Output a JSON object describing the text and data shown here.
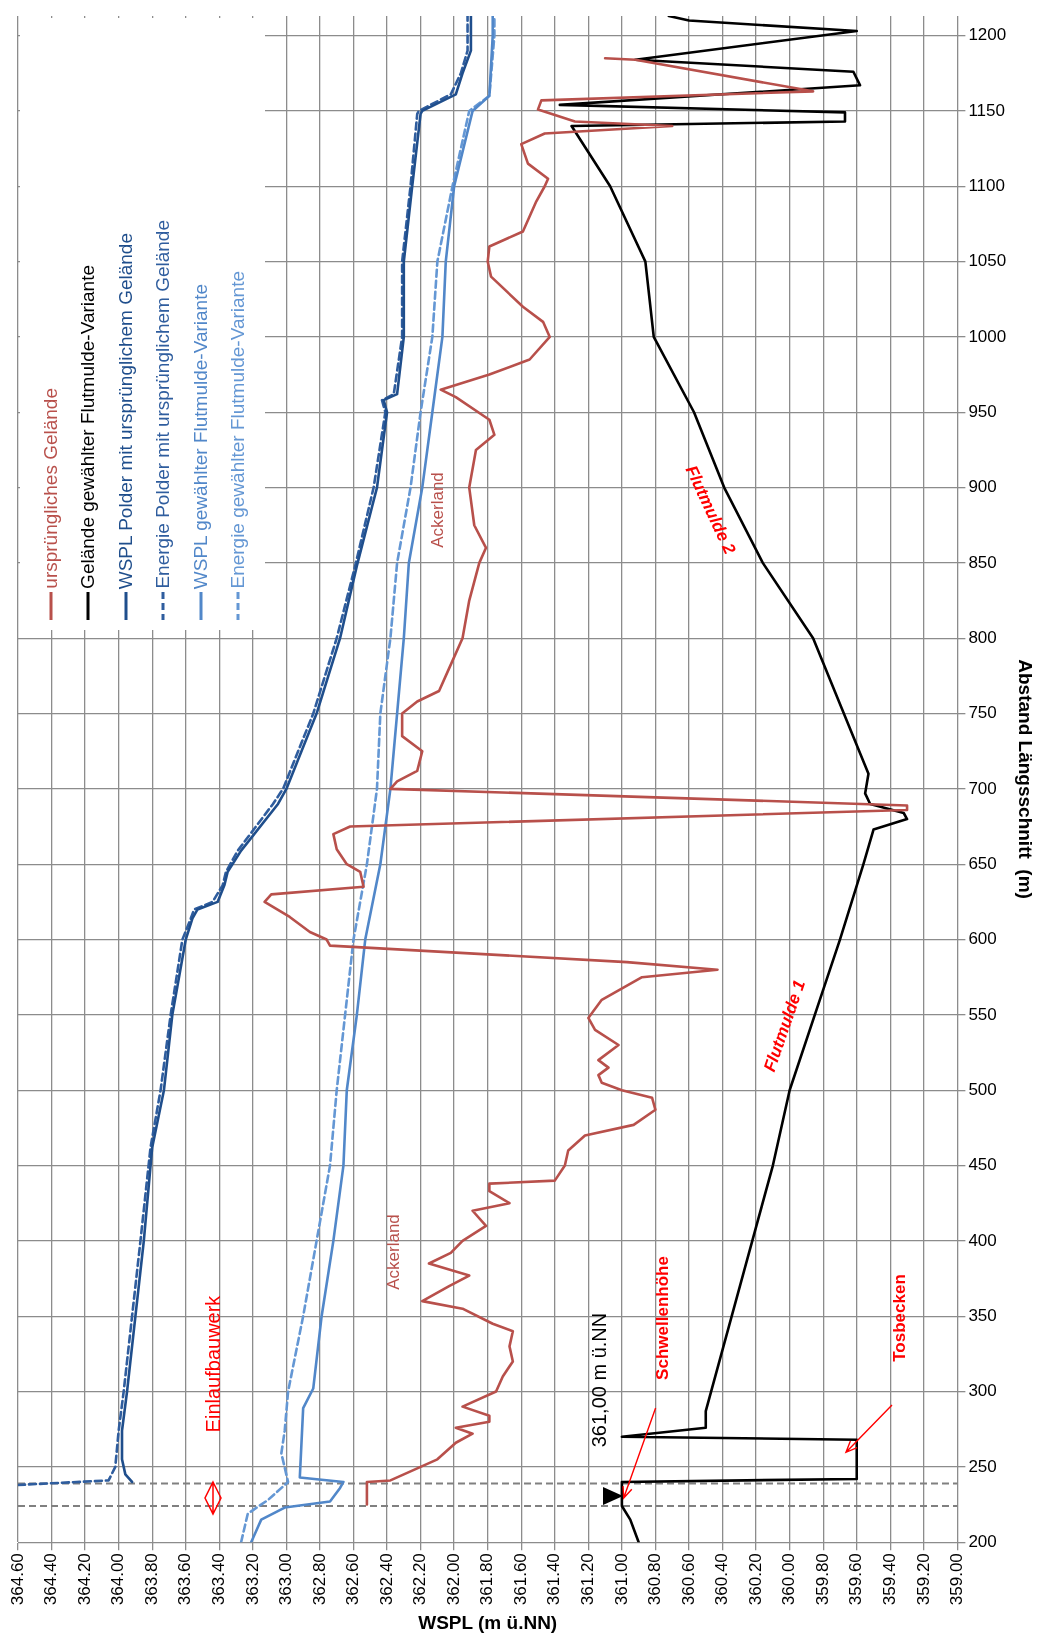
{
  "chart_data": {
    "type": "line",
    "xlabel": "WSPL (m ü.NN)",
    "ylabel": "Abstand Längsschnitt  (m)",
    "xlim": [
      364.6,
      359
    ],
    "xticks": [
      {
        "value": 364.6,
        "label": "364.60"
      },
      {
        "value": 364.4,
        "label": "364.40"
      },
      {
        "value": 364.2,
        "label": "364.20"
      },
      {
        "value": 364,
        "label": "364.00"
      },
      {
        "value": 363.8,
        "label": "363.80"
      },
      {
        "value": 363.6,
        "label": "363.60"
      },
      {
        "value": 363.4,
        "label": "363.40"
      },
      {
        "value": 363.2,
        "label": "363.20"
      },
      {
        "value": 363,
        "label": "363.00"
      },
      {
        "value": 362.8,
        "label": "362.80"
      },
      {
        "value": 362.6,
        "label": "362.60"
      },
      {
        "value": 362.4,
        "label": "362.40"
      },
      {
        "value": 362.2,
        "label": "362.20"
      },
      {
        "value": 362,
        "label": "362.00"
      },
      {
        "value": 361.8,
        "label": "361.80"
      },
      {
        "value": 361.6,
        "label": "361.60"
      },
      {
        "value": 361.4,
        "label": "361.40"
      },
      {
        "value": 361.2,
        "label": "361.20"
      },
      {
        "value": 361,
        "label": "361.00"
      },
      {
        "value": 360.8,
        "label": "360.80"
      },
      {
        "value": 360.6,
        "label": "360.60"
      },
      {
        "value": 360.4,
        "label": "360.40"
      },
      {
        "value": 360.2,
        "label": "360.20"
      },
      {
        "value": 360,
        "label": "360.00"
      },
      {
        "value": 359.8,
        "label": "359.80"
      },
      {
        "value": 359.6,
        "label": "359.60"
      },
      {
        "value": 359.4,
        "label": "359.40"
      },
      {
        "value": 359.2,
        "label": "359.20"
      },
      {
        "value": 359,
        "label": "359.00"
      }
    ],
    "ylim": [
      200,
      1213
    ],
    "yticks": [
      200,
      250,
      300,
      350,
      400,
      450,
      500,
      550,
      600,
      650,
      700,
      750,
      800,
      850,
      900,
      950,
      1000,
      1050,
      1100,
      1150,
      1200
    ],
    "grid": true,
    "legend": "top left",
    "marker": "none",
    "series": [
      {
        "name": "ursprüngliches Gelände",
        "color": "#b8504b",
        "line_style": "solid",
        "values": [
          225,
          240,
          241,
          255,
          266,
          272,
          276,
          280,
          284,
          290,
          300,
          310,
          320,
          330,
          340,
          345,
          355,
          360,
          370,
          377,
          385,
          392,
          400,
          410,
          420,
          425,
          433,
          438,
          440,
          450,
          460,
          470,
          477,
          487,
          495,
          500,
          505,
          510,
          515,
          520,
          530,
          540,
          548,
          560,
          575,
          580,
          585,
          596,
          600,
          605,
          615,
          625,
          630,
          635,
          645,
          650,
          660,
          670,
          675,
          686,
          689,
          700,
          705,
          712,
          725,
          735,
          750,
          758,
          765,
          780,
          800,
          825,
          850,
          860,
          875,
          900,
          925,
          935,
          945,
          960,
          965,
          975,
          985,
          1000,
          1010,
          1020,
          1040,
          1050,
          1060,
          1070,
          1090,
          1100,
          1105,
          1115,
          1128,
          1135,
          1140,
          1143,
          1151,
          1157,
          1163,
          1184,
          1185
        ],
        "x": [
          362.52,
          362.52,
          362.38,
          362.1,
          361.99,
          361.89,
          361.99,
          361.79,
          361.79,
          361.95,
          361.75,
          361.71,
          361.65,
          361.67,
          361.65,
          361.77,
          361.95,
          362.19,
          362.03,
          361.91,
          362.15,
          362.02,
          361.95,
          361.81,
          361.89,
          361.67,
          361.79,
          361.79,
          361.4,
          361.34,
          361.32,
          361.22,
          360.93,
          360.8,
          360.82,
          361.0,
          361.12,
          361.14,
          361.08,
          361.14,
          361.02,
          361.16,
          361.2,
          361.12,
          360.88,
          360.43,
          360.97,
          362.74,
          362.76,
          362.86,
          362.98,
          363.13,
          363.09,
          362.54,
          362.56,
          362.64,
          362.7,
          362.72,
          362.62,
          359.3,
          359.3,
          362.38,
          362.34,
          362.22,
          362.19,
          362.31,
          362.31,
          362.22,
          362.09,
          362.03,
          361.95,
          361.91,
          361.85,
          361.81,
          361.88,
          361.91,
          361.87,
          361.76,
          361.79,
          361.99,
          362.08,
          361.79,
          361.55,
          361.43,
          361.47,
          361.59,
          361.78,
          361.8,
          361.79,
          361.59,
          361.51,
          361.46,
          361.44,
          361.56,
          361.6,
          361.46,
          360.7,
          361.28,
          361.5,
          361.48,
          359.86,
          360.92,
          361.1
        ]
      },
      {
        "name": "Gelände gewählter Flutmulde-Variante",
        "color": "#000000",
        "line_style": "solid",
        "values": [
          200,
          215,
          224,
          240,
          242,
          268,
          270,
          276,
          287,
          450,
          500,
          600,
          650,
          673,
          680,
          684,
          690,
          697,
          710,
          800,
          850,
          900,
          950,
          1000,
          1050,
          1100,
          1140,
          1143,
          1149,
          1154,
          1167,
          1176,
          1184,
          1203,
          1210,
          1213
        ],
        "x": [
          360.9,
          360.95,
          361.0,
          361.0,
          359.6,
          359.6,
          361.0,
          360.5,
          360.5,
          360.1,
          360.0,
          359.7,
          359.56,
          359.5,
          359.3,
          359.32,
          359.52,
          359.55,
          359.53,
          359.86,
          360.16,
          360.39,
          360.57,
          360.81,
          360.86,
          361.07,
          361.3,
          359.67,
          359.67,
          361.37,
          359.58,
          359.62,
          360.92,
          359.6,
          360.6,
          360.72
        ]
      },
      {
        "name": "WSPL Polder mit ursprünglichem Gelände",
        "color": "#1f4e8c",
        "line_style": "solid",
        "values": [
          240,
          245,
          255,
          274,
          300,
          350,
          400,
          462,
          500,
          550,
          600,
          614,
          620,
          625,
          636,
          645,
          659,
          690,
          700,
          750,
          800,
          848,
          900,
          950,
          958,
          962,
          1000,
          1050,
          1100,
          1148,
          1150,
          1161,
          1175,
          1190,
          1213
        ],
        "x": [
          363.92,
          363.96,
          363.98,
          363.98,
          363.95,
          363.9,
          363.85,
          363.8,
          363.73,
          363.68,
          363.6,
          363.56,
          363.53,
          363.41,
          363.37,
          363.35,
          363.27,
          363.05,
          363.0,
          362.82,
          362.68,
          362.58,
          362.46,
          362.4,
          362.42,
          362.34,
          362.3,
          362.3,
          362.25,
          362.2,
          362.19,
          361.99,
          361.95,
          361.9,
          361.9
        ]
      },
      {
        "name": "Energie Polder mit ursprünglichem Gelände",
        "color": "#2f5d9e",
        "line_style": "dashed",
        "values": [
          238,
          241,
          250,
          274,
          300,
          350,
          400,
          462,
          500,
          550,
          600,
          614,
          620,
          625,
          636,
          645,
          659,
          690,
          700,
          750,
          800,
          848,
          900,
          950,
          958,
          962,
          1000,
          1050,
          1100,
          1148,
          1150,
          1161,
          1175,
          1190,
          1213
        ],
        "x": [
          364.6,
          364.06,
          364.02,
          364.0,
          363.97,
          363.92,
          363.87,
          363.81,
          363.75,
          363.69,
          363.62,
          363.57,
          363.55,
          363.44,
          363.38,
          363.36,
          363.29,
          363.08,
          363.02,
          362.84,
          362.7,
          362.59,
          362.48,
          362.41,
          362.43,
          362.36,
          362.31,
          362.31,
          362.26,
          362.22,
          362.21,
          362.02,
          361.96,
          361.92,
          361.92
        ]
      },
      {
        "name": "WSPL gewählter Flutmulde-Variante",
        "color": "#5187c9",
        "line_style": "solid",
        "values": [
          200,
          215,
          223,
          227,
          236,
          240,
          243,
          289,
          302,
          350,
          400,
          450,
          500,
          550,
          600,
          650,
          700,
          750,
          800,
          850,
          900,
          950,
          1000,
          1050,
          1100,
          1150,
          1160,
          1200,
          1213
        ],
        "x": [
          363.21,
          363.15,
          363.01,
          362.74,
          362.68,
          362.66,
          362.92,
          362.9,
          362.84,
          362.79,
          362.72,
          362.66,
          362.64,
          362.58,
          362.53,
          362.44,
          362.38,
          362.34,
          362.3,
          362.27,
          362.19,
          362.13,
          362.07,
          362.05,
          362.0,
          361.89,
          361.79,
          361.77,
          361.77
        ]
      },
      {
        "name": "Energie gewählter Flutmulde-Variante",
        "color": "#6497d4",
        "line_style": "dashed",
        "values": [
          200,
          219,
          228,
          240,
          259,
          274,
          300,
          350,
          400,
          450,
          500,
          550,
          600,
          650,
          700,
          750,
          800,
          850,
          900,
          950,
          1000,
          1050,
          1100,
          1150,
          1160,
          1200,
          1213
        ],
        "x": [
          363.27,
          363.23,
          363.11,
          362.99,
          363.03,
          363.01,
          362.99,
          362.9,
          362.82,
          362.74,
          362.7,
          362.65,
          362.6,
          362.52,
          362.46,
          362.44,
          362.38,
          362.34,
          362.26,
          362.2,
          362.13,
          362.1,
          362.01,
          361.91,
          361.79,
          361.76,
          361.76
        ]
      }
    ],
    "ref_lines": [
      {
        "axis": "y",
        "value": 224,
        "color": "#808080",
        "line_style": "dashed"
      },
      {
        "axis": "y",
        "value": 239,
        "color": "#808080",
        "line_style": "dashed"
      }
    ],
    "annotations": [
      "Einlaufbauwerk",
      "361,00 m ü.NN",
      "Schwellenhöhe",
      "Tosbecken",
      "Ackerland",
      "Ackerland",
      "Flutmulde 1",
      "Flutmulde 2"
    ]
  }
}
